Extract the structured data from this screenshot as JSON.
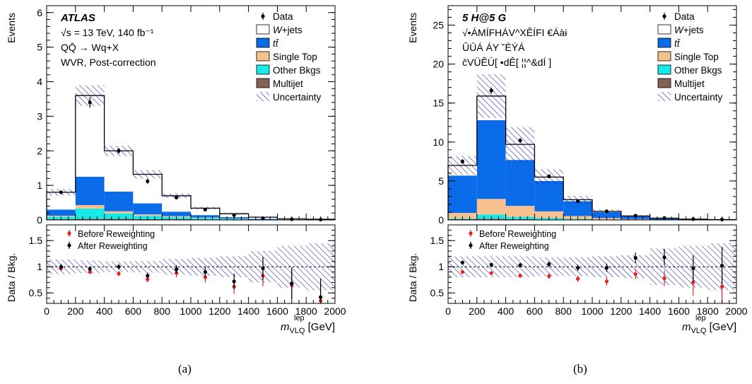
{
  "chart_data": [
    {
      "type": "stacked-histogram-with-ratio",
      "panel_label": "(a)",
      "experiment": "ATLAS",
      "info_lines": [
        "√s = 13 TeV, 140 fb⁻¹",
        "QQ̄ → Wq+X",
        "WVR, Post-correction"
      ],
      "xlabel": "m_VLQ^lep [GeV]",
      "ylabel": "Events",
      "ratio_ylabel": "Data / Bkg.",
      "xlim": [
        0,
        2000
      ],
      "ylim": [
        0,
        6.2
      ],
      "ratio_ylim": [
        0.3,
        1.8
      ],
      "x_ticks": [
        0,
        200,
        400,
        600,
        800,
        1000,
        1200,
        1400,
        1600,
        1800,
        2000
      ],
      "y_ticks": [
        0,
        1,
        2,
        3,
        4,
        5,
        6
      ],
      "ratio_y_ticks": [
        0.5,
        1,
        1.5
      ],
      "bin_edges": [
        0,
        200,
        400,
        600,
        800,
        1000,
        1200,
        1400,
        1600,
        1800,
        2000
      ],
      "stack": [
        {
          "name": "Multijet",
          "values": [
            0.02,
            0.03,
            0.03,
            0.02,
            0.02,
            0.01,
            0.01,
            0.0,
            0.0,
            0.0
          ]
        },
        {
          "name": "Other Bkgs",
          "values": [
            0.07,
            0.3,
            0.16,
            0.1,
            0.06,
            0.04,
            0.02,
            0.01,
            0.0,
            0.0
          ]
        },
        {
          "name": "Single Top",
          "values": [
            0.03,
            0.1,
            0.06,
            0.04,
            0.03,
            0.02,
            0.01,
            0.0,
            0.0,
            0.0
          ]
        },
        {
          "name": "tt̄",
          "values": [
            0.18,
            0.82,
            0.57,
            0.32,
            0.13,
            0.07,
            0.04,
            0.02,
            0.01,
            0.01
          ]
        },
        {
          "name": "W+jets",
          "values": [
            0.5,
            2.35,
            1.18,
            0.84,
            0.46,
            0.2,
            0.1,
            0.05,
            0.02,
            0.01
          ]
        }
      ],
      "uncertainty": [
        0.1,
        0.3,
        0.15,
        0.12,
        0.07,
        0.04,
        0.03,
        0.015,
        0.01,
        0.005
      ],
      "data": [
        0.8,
        3.4,
        2.0,
        1.12,
        0.65,
        0.3,
        0.14,
        0.05,
        0.02,
        0.01
      ],
      "data_err": [
        0.05,
        0.15,
        0.08,
        0.07,
        0.05,
        0.03,
        0.02,
        0.01,
        0.005,
        0.005
      ],
      "ratio_band": [
        0.14,
        0.12,
        0.1,
        0.11,
        0.15,
        0.17,
        0.2,
        0.3,
        0.4,
        0.45
      ],
      "ratio_series": [
        {
          "name": "Before Reweighting",
          "values": [
            0.97,
            0.9,
            0.87,
            0.76,
            0.88,
            0.8,
            0.62,
            0.83,
            0.65,
            0.35
          ],
          "errors": [
            0.05,
            0.04,
            0.05,
            0.06,
            0.08,
            0.1,
            0.14,
            0.2,
            0.3,
            0.35
          ]
        },
        {
          "name": "After Reweighting",
          "values": [
            1.0,
            0.96,
            1.0,
            0.83,
            0.95,
            0.9,
            0.72,
            0.97,
            0.68,
            0.42
          ],
          "errors": [
            0.05,
            0.04,
            0.05,
            0.06,
            0.08,
            0.1,
            0.15,
            0.22,
            0.3,
            0.35
          ]
        }
      ]
    },
    {
      "type": "stacked-histogram-with-ratio",
      "panel_label": "(b)",
      "experiment": "5 H@5 G",
      "info_lines": [
        "√•ÁMÍFHÁV^XÊÍFI €Áàɨ",
        "ÛŪÁ ÁY ˘ÉÝÁ",
        "c̄VÜÊÚ[ •dÊ[ ¦¦^&dÍ ]"
      ],
      "xlabel": "m_VLQ^lep [GeV]",
      "ylabel": "Events",
      "ratio_ylabel": "Data / Bkg.",
      "xlim": [
        0,
        2000
      ],
      "ylim": [
        0,
        27.5
      ],
      "ratio_ylim": [
        0.3,
        1.8
      ],
      "x_ticks": [
        0,
        200,
        400,
        600,
        800,
        1000,
        1200,
        1400,
        1600,
        1800,
        2000
      ],
      "y_ticks": [
        0,
        5,
        10,
        15,
        20,
        25
      ],
      "ratio_y_ticks": [
        0.5,
        1,
        1.5
      ],
      "bin_edges": [
        0,
        200,
        400,
        600,
        800,
        1000,
        1200,
        1400,
        1600,
        1800,
        2000
      ],
      "stack": [
        {
          "name": "Multijet",
          "values": [
            0.1,
            0.15,
            0.1,
            0.05,
            0.03,
            0.02,
            0.01,
            0.0,
            0.0,
            0.0
          ]
        },
        {
          "name": "Other Bkgs",
          "values": [
            0.1,
            0.55,
            0.3,
            0.2,
            0.1,
            0.05,
            0.02,
            0.01,
            0.0,
            0.0
          ]
        },
        {
          "name": "Single Top",
          "values": [
            0.7,
            2.0,
            1.4,
            0.85,
            0.37,
            0.18,
            0.08,
            0.04,
            0.02,
            0.01
          ]
        },
        {
          "name": "tt̄",
          "values": [
            4.8,
            10.1,
            5.9,
            3.9,
            1.9,
            0.75,
            0.35,
            0.15,
            0.07,
            0.03
          ]
        },
        {
          "name": "W+jets",
          "values": [
            1.3,
            3.1,
            2.0,
            0.5,
            0.2,
            0.1,
            0.05,
            0.02,
            0.01,
            0.0
          ]
        }
      ],
      "uncertainty": [
        1.2,
        2.8,
        2.2,
        1.0,
        0.5,
        0.25,
        0.12,
        0.06,
        0.03,
        0.02
      ],
      "data": [
        7.5,
        16.6,
        10.2,
        5.6,
        2.4,
        1.1,
        0.55,
        0.25,
        0.1,
        0.05
      ],
      "data_err": [
        0.3,
        0.4,
        0.3,
        0.25,
        0.15,
        0.1,
        0.07,
        0.05,
        0.03,
        0.02
      ],
      "ratio_band": [
        0.2,
        0.2,
        0.2,
        0.18,
        0.18,
        0.2,
        0.22,
        0.35,
        0.4,
        0.45
      ],
      "ratio_series": [
        {
          "name": "Before Reweighting",
          "values": [
            0.9,
            0.88,
            0.83,
            0.82,
            0.77,
            0.72,
            0.86,
            0.78,
            0.7,
            0.62
          ],
          "errors": [
            0.04,
            0.03,
            0.04,
            0.05,
            0.06,
            0.08,
            0.1,
            0.15,
            0.25,
            0.35
          ]
        },
        {
          "name": "After Reweighting",
          "values": [
            1.08,
            1.04,
            1.03,
            1.05,
            0.98,
            0.98,
            1.17,
            1.18,
            0.97,
            1.02
          ],
          "errors": [
            0.04,
            0.03,
            0.04,
            0.05,
            0.06,
            0.08,
            0.1,
            0.16,
            0.25,
            0.36
          ]
        }
      ]
    }
  ],
  "colors": {
    "W+jets": "#ffffff",
    "tt̄": "#0a6ce8",
    "Single Top": "#f7c08f",
    "Other Bkgs": "#17e8e8",
    "Multijet": "#866054",
    "uncertainty": "#1a1aa8",
    "before": "#e8201f",
    "after": "#000000"
  },
  "legend": {
    "data": "Data",
    "wjets": "+jets",
    "wjets_w": "W",
    "ttbar": "tt̄",
    "single_top": "Single Top",
    "other": "Other Bkgs",
    "multijet": "Multijet",
    "uncertainty": "Uncertainty",
    "before": "Before Reweighting",
    "after": "After Reweighting"
  }
}
